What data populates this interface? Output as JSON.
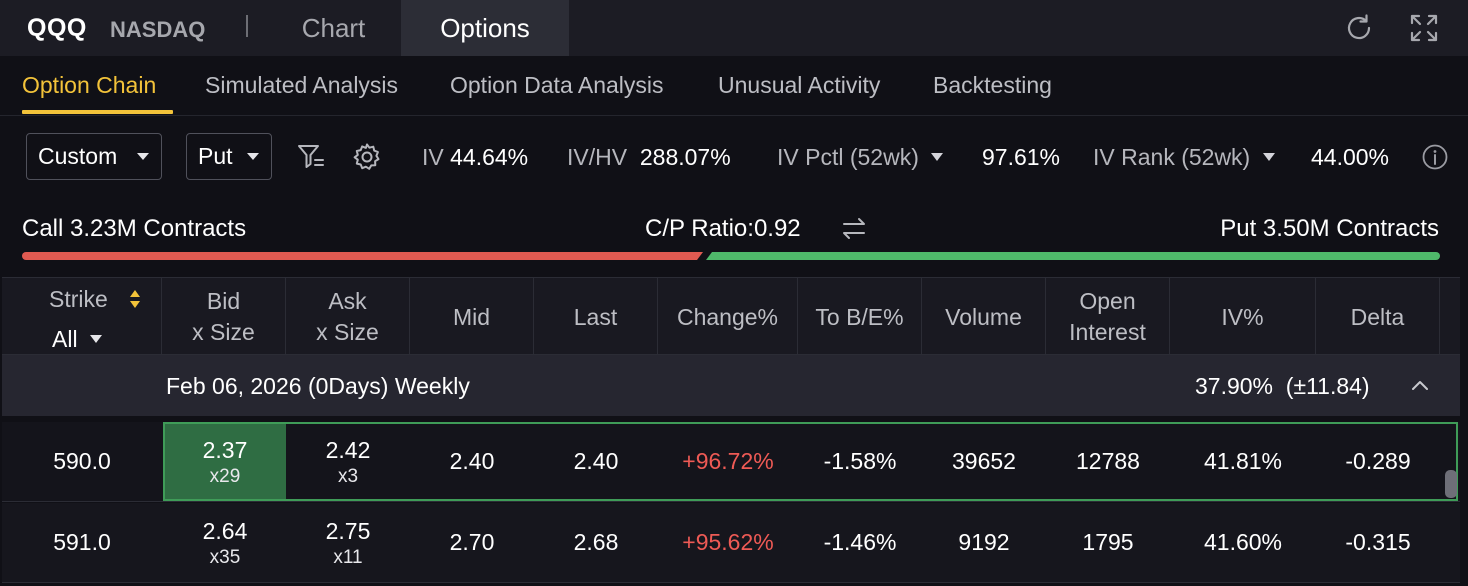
{
  "header": {
    "ticker": "QQQ",
    "exchange": "NASDAQ",
    "tabs": [
      {
        "label": "Chart",
        "active": false
      },
      {
        "label": "Options",
        "active": true
      }
    ],
    "icons": [
      "refresh-icon",
      "expand-icon"
    ]
  },
  "subtabs": [
    {
      "label": "Option Chain",
      "active": true
    },
    {
      "label": "Simulated Analysis",
      "active": false
    },
    {
      "label": "Option Data Analysis",
      "active": false
    },
    {
      "label": "Unusual Activity",
      "active": false
    },
    {
      "label": "Backtesting",
      "active": false
    }
  ],
  "controls": {
    "strategy": "Custom",
    "side": "Put",
    "iv_label": "IV",
    "iv_value": "44.64%",
    "ivhv_label": "IV/HV",
    "ivhv_value": "288.07%",
    "ivpctl_label": "IV Pctl (52wk)",
    "ivpctl_value": "97.61%",
    "ivrank_label": "IV Rank (52wk)",
    "ivrank_value": "44.00%"
  },
  "ratio": {
    "call_text": "Call 3.23M Contracts",
    "ratio_text": "C/P Ratio:0.92",
    "put_text": "Put 3.50M Contracts",
    "call_share": 0.48,
    "call_color": "#e05a51",
    "put_color": "#4fb96a"
  },
  "table": {
    "columns": [
      {
        "key": "strike",
        "line1": "Strike",
        "line2": ""
      },
      {
        "key": "bid",
        "line1": "Bid",
        "line2": "x Size"
      },
      {
        "key": "ask",
        "line1": "Ask",
        "line2": "x Size"
      },
      {
        "key": "mid",
        "line1": "Mid",
        "line2": ""
      },
      {
        "key": "last",
        "line1": "Last",
        "line2": ""
      },
      {
        "key": "change",
        "line1": "Change%",
        "line2": ""
      },
      {
        "key": "tobe",
        "line1": "To B/E%",
        "line2": ""
      },
      {
        "key": "volume",
        "line1": "Volume",
        "line2": ""
      },
      {
        "key": "oi",
        "line1": "Open",
        "line2": "Interest"
      },
      {
        "key": "iv",
        "line1": "IV%",
        "line2": ""
      },
      {
        "key": "delta",
        "line1": "Delta",
        "line2": ""
      }
    ],
    "strike_filter": "All",
    "group": {
      "date": "Feb 06, 2026 (0Days) Weekly",
      "iv": "37.90%",
      "range": "(±11.84)"
    },
    "rows": [
      {
        "strike": "590.0",
        "bid": "2.37",
        "bid_size": "x29",
        "ask": "2.42",
        "ask_size": "x3",
        "mid": "2.40",
        "last": "2.40",
        "change": "+96.72%",
        "tobe": "-1.58%",
        "volume": "39652",
        "oi": "12788",
        "iv": "41.81%",
        "delta": "-0.289"
      },
      {
        "strike": "591.0",
        "bid": "2.64",
        "bid_size": "x35",
        "ask": "2.75",
        "ask_size": "x11",
        "mid": "2.70",
        "last": "2.68",
        "change": "+95.62%",
        "tobe": "-1.46%",
        "volume": "9192",
        "oi": "1795",
        "iv": "41.60%",
        "delta": "-0.315"
      }
    ]
  },
  "colors": {
    "accent": "#f3c33a",
    "positive_change": "#ee5a55",
    "selected_bid": "#2f6d43"
  }
}
